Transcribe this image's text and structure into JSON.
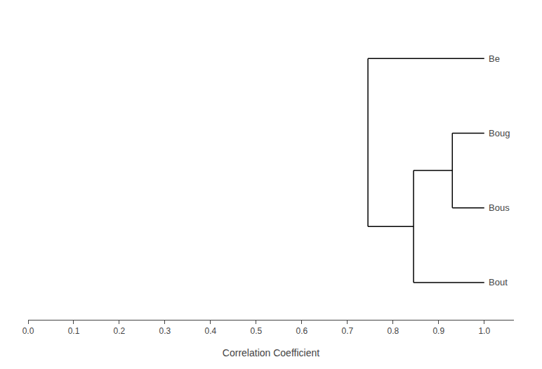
{
  "chart_data": {
    "type": "dendrogram",
    "categories": [
      "Be",
      "Boug",
      "Bous",
      "Bout"
    ],
    "leaf_value": 1,
    "merges": [
      {
        "join": [
          [
            "Boug"
          ],
          [
            "Bous"
          ]
        ],
        "value": 0.93
      },
      {
        "join": [
          [
            "Boug",
            "Bous"
          ],
          [
            "Bout"
          ]
        ],
        "value": 0.845
      },
      {
        "join": [
          [
            "Be"
          ],
          [
            "Boug",
            "Bous",
            "Bout"
          ]
        ],
        "value": 0.745
      }
    ],
    "xlabel": "Correlation Coefficient",
    "xlim": [
      0,
      1.065
    ],
    "xticks": [
      {
        "value": 0,
        "label": "0.0"
      },
      0.1,
      0.2,
      0.3,
      0.4,
      0.5,
      0.6,
      0.7,
      0.8,
      0.9,
      {
        "value": 1,
        "label": "1.0"
      }
    ],
    "color": "black",
    "grid": false,
    "tick_labels": "x"
  }
}
